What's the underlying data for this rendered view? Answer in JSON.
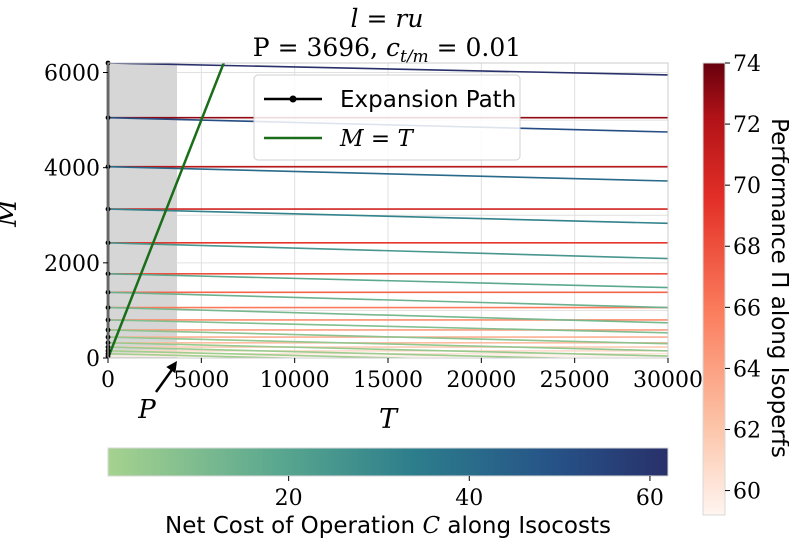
{
  "chart_data": {
    "type": "line",
    "title_line1": "l = ru",
    "title_line2": "P = 3696, c_{t/m} = 0.01",
    "title_p_text": "P = 3696, ",
    "title_c_symbol": "c",
    "title_c_subscript": "t/m",
    "title_c_value": " = 0.01",
    "xlabel": "T",
    "ylabel": "M",
    "xlim": [
      0,
      30000
    ],
    "ylim": [
      0,
      6200
    ],
    "x_ticks": [
      0,
      5000,
      10000,
      15000,
      20000,
      25000,
      30000
    ],
    "x_tick_labels": [
      "0",
      "5000",
      "10000",
      "15000",
      "20000",
      "25000",
      "30000"
    ],
    "y_ticks": [
      0,
      2000,
      4000,
      6000
    ],
    "y_tick_labels": [
      "0",
      "2000",
      "4000",
      "6000"
    ],
    "grid": true,
    "shaded_region": {
      "x": [
        0,
        3696
      ]
    },
    "P_marker": {
      "label": "P",
      "x": 3696
    },
    "legend": {
      "placement": "upper center",
      "entries": [
        {
          "label": "Expansion Path",
          "color": "#000000",
          "marker": "dot"
        },
        {
          "label": "M = T",
          "label_symbol_left": "M",
          "label_eq": " = ",
          "label_symbol_right": "T",
          "color": "#1a6e1a"
        }
      ]
    },
    "line_M_equals_T": {
      "x": [
        0,
        6200
      ],
      "y": [
        0,
        6200
      ],
      "color": "#1a6e1a"
    },
    "expansion_path_points": [
      {
        "x": 0,
        "y": 40
      },
      {
        "x": 0,
        "y": 90
      },
      {
        "x": 0,
        "y": 150
      },
      {
        "x": 0,
        "y": 230
      },
      {
        "x": 0,
        "y": 320
      },
      {
        "x": 0,
        "y": 440
      },
      {
        "x": 0,
        "y": 590
      },
      {
        "x": 0,
        "y": 800
      },
      {
        "x": 0,
        "y": 1060
      },
      {
        "x": 0,
        "y": 1380
      },
      {
        "x": 0,
        "y": 1770
      },
      {
        "x": 0,
        "y": 2420
      },
      {
        "x": 0,
        "y": 3130
      },
      {
        "x": 0,
        "y": 4020
      },
      {
        "x": 0,
        "y": 5050
      },
      {
        "x": 0,
        "y": 6200
      }
    ],
    "isoperf_levels": [
      {
        "M": 40,
        "perf": 59.6
      },
      {
        "M": 90,
        "perf": 60.2
      },
      {
        "M": 150,
        "perf": 60.9
      },
      {
        "M": 230,
        "perf": 61.6
      },
      {
        "M": 320,
        "perf": 62.4
      },
      {
        "M": 440,
        "perf": 63.2
      },
      {
        "M": 590,
        "perf": 64.1
      },
      {
        "M": 800,
        "perf": 65.0
      },
      {
        "M": 1060,
        "perf": 66.0
      },
      {
        "M": 1380,
        "perf": 67.0
      },
      {
        "M": 1770,
        "perf": 68.0
      },
      {
        "M": 2420,
        "perf": 69.2
      },
      {
        "M": 3130,
        "perf": 70.5
      },
      {
        "M": 4020,
        "perf": 71.8
      },
      {
        "M": 5050,
        "perf": 73.0
      }
    ],
    "isocost_lines": [
      {
        "M0": 6200,
        "M_at_xmax": 5950,
        "cost": 62
      },
      {
        "M0": 5050,
        "M_at_xmax": 4750,
        "cost": 51
      },
      {
        "M0": 4020,
        "M_at_xmax": 3720,
        "cost": 41
      },
      {
        "M0": 3130,
        "M_at_xmax": 2830,
        "cost": 32
      },
      {
        "M0": 2420,
        "M_at_xmax": 2090,
        "cost": 25
      },
      {
        "M0": 1770,
        "M_at_xmax": 1480,
        "cost": 18.5
      },
      {
        "M0": 1380,
        "M_at_xmax": 1060,
        "cost": 14.5
      },
      {
        "M0": 1060,
        "M_at_xmax": 740,
        "cost": 11.5
      },
      {
        "M0": 800,
        "M_at_xmax": 530,
        "cost": 9
      },
      {
        "M0": 590,
        "M_at_xmax": 300,
        "cost": 6.5
      },
      {
        "M0": 440,
        "M_at_xmax": 150,
        "cost": 5
      },
      {
        "M0": 320,
        "M_at_xmax": 40,
        "cost": 3.5
      },
      {
        "M0": 230,
        "M_at_xmax": -60,
        "cost": 2.5
      },
      {
        "M0": 150,
        "M_at_xmax": -140,
        "cost": 1.8
      },
      {
        "M0": 90,
        "M_at_xmax": -200,
        "cost": 1.2
      }
    ],
    "colorbar_cost": {
      "label": "Net Cost of Operation C along Isocosts",
      "label_text": "Net Cost of Operation ",
      "label_symbol": "C",
      "label_suffix": " along Isocosts",
      "range": [
        0,
        62
      ],
      "ticks": [
        20,
        40,
        60
      ],
      "tick_labels": [
        "20",
        "40",
        "60"
      ],
      "colormap": "crest"
    },
    "colorbar_perf": {
      "label": "Performance Π along Isoperfs",
      "range": [
        59.2,
        74
      ],
      "ticks": [
        60,
        62,
        64,
        66,
        68,
        70,
        72,
        74
      ],
      "tick_labels": [
        "60",
        "62",
        "64",
        "66",
        "68",
        "70",
        "72",
        "74"
      ],
      "colormap": "Reds"
    }
  }
}
